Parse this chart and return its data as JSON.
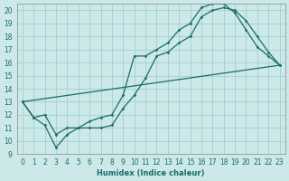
{
  "xlabel": "Humidex (Indice chaleur)",
  "background_color": "#cce8e8",
  "grid_color": "#99cccc",
  "line_color": "#1a6b6b",
  "xlim": [
    -0.5,
    23.5
  ],
  "ylim": [
    9,
    20.5
  ],
  "xticks": [
    0,
    1,
    2,
    3,
    4,
    5,
    6,
    7,
    8,
    9,
    10,
    11,
    12,
    13,
    14,
    15,
    16,
    17,
    18,
    19,
    20,
    21,
    22,
    23
  ],
  "yticks": [
    9,
    10,
    11,
    12,
    13,
    14,
    15,
    16,
    17,
    18,
    19,
    20
  ],
  "line1_x": [
    0,
    1,
    2,
    3,
    4,
    5,
    6,
    7,
    8,
    9,
    10,
    11,
    12,
    13,
    14,
    15,
    16,
    17,
    18,
    19,
    20,
    21,
    22,
    23
  ],
  "line1_y": [
    13,
    11.8,
    11.2,
    9.5,
    10.5,
    11.0,
    11.0,
    11.0,
    11.2,
    12.5,
    13.5,
    14.8,
    16.5,
    16.8,
    17.5,
    18.0,
    19.5,
    20.0,
    20.2,
    20.0,
    19.2,
    18.0,
    16.8,
    15.8
  ],
  "line2_x": [
    0,
    1,
    2,
    3,
    4,
    5,
    6,
    7,
    8,
    9,
    10,
    11,
    12,
    13,
    14,
    15,
    16,
    17,
    18,
    19,
    20,
    21,
    22,
    23
  ],
  "line2_y": [
    13,
    11.8,
    12.0,
    10.5,
    11.0,
    11.0,
    11.5,
    11.8,
    12.0,
    13.5,
    16.5,
    16.5,
    17.0,
    17.5,
    18.5,
    19.0,
    20.2,
    20.5,
    20.5,
    19.8,
    18.5,
    17.2,
    16.5,
    15.8
  ],
  "line3_x": [
    0,
    23
  ],
  "line3_y": [
    13,
    15.8
  ]
}
